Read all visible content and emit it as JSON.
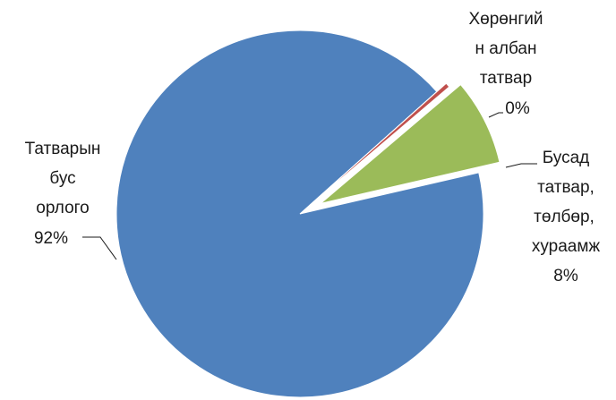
{
  "chart_data": {
    "type": "pie",
    "title": "",
    "legend": "none",
    "exploded": true,
    "slices": [
      {
        "label_lines": [
          "Татварын",
          "бус",
          "орлого"
        ],
        "value": 92,
        "percent_label": "92%",
        "color": "#4F81BD"
      },
      {
        "label_lines": [
          "Хөрөнгий",
          "н албан",
          "татвар"
        ],
        "value": 0.4,
        "percent_label": "0%",
        "color": "#C0504D"
      },
      {
        "label_lines": [
          "Бусад",
          "татвар,",
          "төлбөр,",
          "хураамж"
        ],
        "value": 7.6,
        "percent_label": "8%",
        "color": "#9BBB59"
      }
    ]
  }
}
